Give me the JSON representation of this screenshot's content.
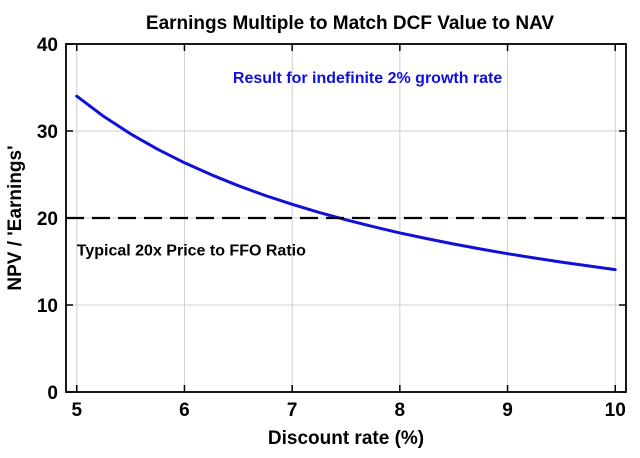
{
  "chart_data": {
    "type": "line",
    "title": "Earnings Multiple to Match DCF Value to NAV",
    "xlabel": "Discount rate (%)",
    "ylabel": "NPV / 'Earnings'",
    "xlim": [
      4.9,
      10.1
    ],
    "ylim": [
      0,
      40
    ],
    "xticks": [
      "5",
      "6",
      "7",
      "8",
      "9",
      "10"
    ],
    "yticks": [
      "0",
      "10",
      "20",
      "30",
      "40"
    ],
    "grid": true,
    "series": [
      {
        "style": "solid",
        "color": "#1010d8",
        "x": [
          5,
          5.25,
          5.5,
          5.75,
          6,
          6.25,
          6.5,
          6.75,
          7,
          7.25,
          7.5,
          7.75,
          8,
          8.25,
          8.5,
          8.75,
          9,
          9.25,
          9.5,
          9.75,
          10
        ],
        "y": [
          34.0,
          31.68,
          29.67,
          27.91,
          26.35,
          24.96,
          23.71,
          22.59,
          21.57,
          20.64,
          19.79,
          19.01,
          18.29,
          17.63,
          17.01,
          16.44,
          15.9,
          15.4,
          14.93,
          14.49,
          14.07
        ]
      },
      {
        "style": "dashed",
        "color": "#000000",
        "x": [
          4.9,
          10.1
        ],
        "y": [
          20,
          20
        ]
      }
    ],
    "annotations": [
      {
        "text": "Result for indefinite 2% growth rate",
        "color": "#1010d8",
        "x": 6.45,
        "y": 35.5
      },
      {
        "text": "Typical 20x Price to FFO Ratio",
        "color": "#000000",
        "x": 5.0,
        "y": 15.7
      }
    ]
  }
}
